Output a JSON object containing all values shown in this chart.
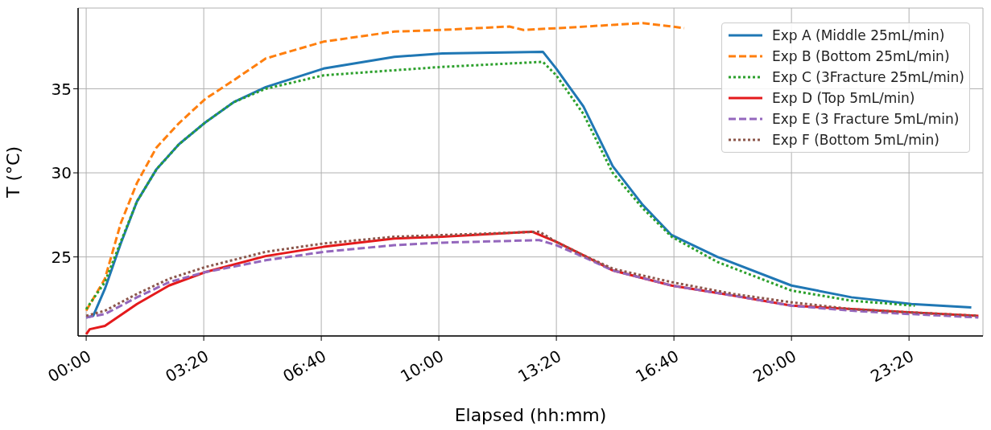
{
  "chart_data": {
    "type": "line",
    "xlabel": "Elapsed (hh:mm)",
    "ylabel": "T (°C)",
    "xlim": [
      -0.23,
      25.43
    ],
    "ylim": [
      20.3,
      39.8
    ],
    "xticks": [
      {
        "value": 0,
        "label": "00:00"
      },
      {
        "value": 3.3333,
        "label": "03:20"
      },
      {
        "value": 6.6667,
        "label": "06:40"
      },
      {
        "value": 10,
        "label": "10:00"
      },
      {
        "value": 13.3333,
        "label": "13:20"
      },
      {
        "value": 16.6667,
        "label": "16:40"
      },
      {
        "value": 20,
        "label": "20:00"
      },
      {
        "value": 23.3333,
        "label": "23:20"
      }
    ],
    "yticks": [
      25,
      30,
      35
    ],
    "grid": true,
    "legend": "top right",
    "marker": "none",
    "series": [
      {
        "name": "Exp A (Middle 25mL/min)",
        "color": "#1f77b4",
        "line_style": "solid",
        "x": [
          0,
          0.2,
          0.53,
          0.98,
          1.44,
          1.99,
          2.63,
          3.38,
          4.18,
          5.09,
          6.73,
          8.74,
          10.1,
          12.95,
          13.33,
          14.1,
          14.93,
          15.78,
          16.6,
          17.9,
          20,
          21.7,
          23.4,
          25.1
        ],
        "values": [
          21.4,
          21.5,
          23.1,
          25.8,
          28.3,
          30.2,
          31.7,
          33.0,
          34.2,
          35.1,
          36.2,
          36.9,
          37.1,
          37.2,
          36.2,
          33.95,
          30.4,
          28.1,
          26.3,
          25.0,
          23.3,
          22.6,
          22.2,
          22.0
        ]
      },
      {
        "name": "Exp B (Bottom 25mL/min)",
        "color": "#ff7f0e",
        "line_style": "dashed",
        "x": [
          0,
          0.53,
          0.98,
          1.44,
          1.99,
          2.63,
          3.38,
          4.18,
          5.09,
          6.73,
          8.74,
          10.1,
          12.0,
          12.4,
          13.33,
          15.78,
          16.6,
          16.96
        ],
        "values": [
          21.8,
          23.7,
          27.0,
          29.4,
          31.5,
          32.95,
          34.4,
          35.5,
          36.8,
          37.8,
          38.4,
          38.5,
          38.7,
          38.5,
          38.6,
          38.9,
          38.7,
          38.6
        ]
      },
      {
        "name": "Exp C (3Fracture 25mL/min)",
        "color": "#2ca02c",
        "line_style": "dotted",
        "x": [
          0,
          0.53,
          0.98,
          1.44,
          1.99,
          2.63,
          3.38,
          4.18,
          5.09,
          6.73,
          8.74,
          10.1,
          12.95,
          13.33,
          14.1,
          14.93,
          15.78,
          16.6,
          17.9,
          20,
          21.7,
          23.5
        ],
        "values": [
          21.9,
          23.5,
          25.9,
          28.3,
          30.2,
          31.7,
          33.0,
          34.2,
          35.0,
          35.8,
          36.1,
          36.3,
          36.6,
          35.8,
          33.5,
          30.0,
          27.9,
          26.2,
          24.7,
          23.0,
          22.4,
          22.1
        ]
      },
      {
        "name": "Exp D (Top 5mL/min)",
        "color": "#e41a1c",
        "line_style": "solid",
        "x": [
          0,
          0.1,
          0.53,
          1.44,
          2.35,
          3.38,
          5.09,
          6.73,
          8.74,
          10.1,
          12.65,
          13.33,
          14.1,
          14.93,
          16.6,
          18.35,
          20,
          21.7,
          23.4,
          25.3
        ],
        "values": [
          20.4,
          20.7,
          20.9,
          22.2,
          23.3,
          24.1,
          25.05,
          25.6,
          26.1,
          26.2,
          26.5,
          25.9,
          25.1,
          24.2,
          23.3,
          22.7,
          22.1,
          21.9,
          21.7,
          21.5
        ]
      },
      {
        "name": "Exp E (3 Fracture 5mL/min)",
        "color": "#9467bd",
        "line_style": "dashed",
        "x": [
          0,
          0.53,
          1.44,
          2.35,
          3.38,
          5.09,
          6.73,
          8.74,
          10.1,
          12.85,
          13.33,
          14.1,
          14.93,
          16.6,
          18.35,
          20,
          21.7,
          23.4,
          25.3
        ],
        "values": [
          21.4,
          21.6,
          22.6,
          23.5,
          24.1,
          24.8,
          25.3,
          25.7,
          25.85,
          26.0,
          25.7,
          25.0,
          24.2,
          23.3,
          22.7,
          22.1,
          21.8,
          21.6,
          21.4
        ]
      },
      {
        "name": "Exp F (Bottom 5mL/min)",
        "color": "#8c564b",
        "line_style": "dotted",
        "x": [
          0,
          0.53,
          1.44,
          2.35,
          3.38,
          5.09,
          6.73,
          8.74,
          10.1,
          12.85,
          13.33,
          14.1,
          14.93,
          16.6,
          18.35,
          20,
          21.7,
          23.4,
          25.3
        ],
        "values": [
          21.5,
          21.8,
          22.8,
          23.7,
          24.4,
          25.3,
          25.8,
          26.2,
          26.3,
          26.5,
          25.9,
          25.1,
          24.3,
          23.5,
          22.8,
          22.3,
          21.9,
          21.7,
          21.5
        ]
      }
    ]
  }
}
